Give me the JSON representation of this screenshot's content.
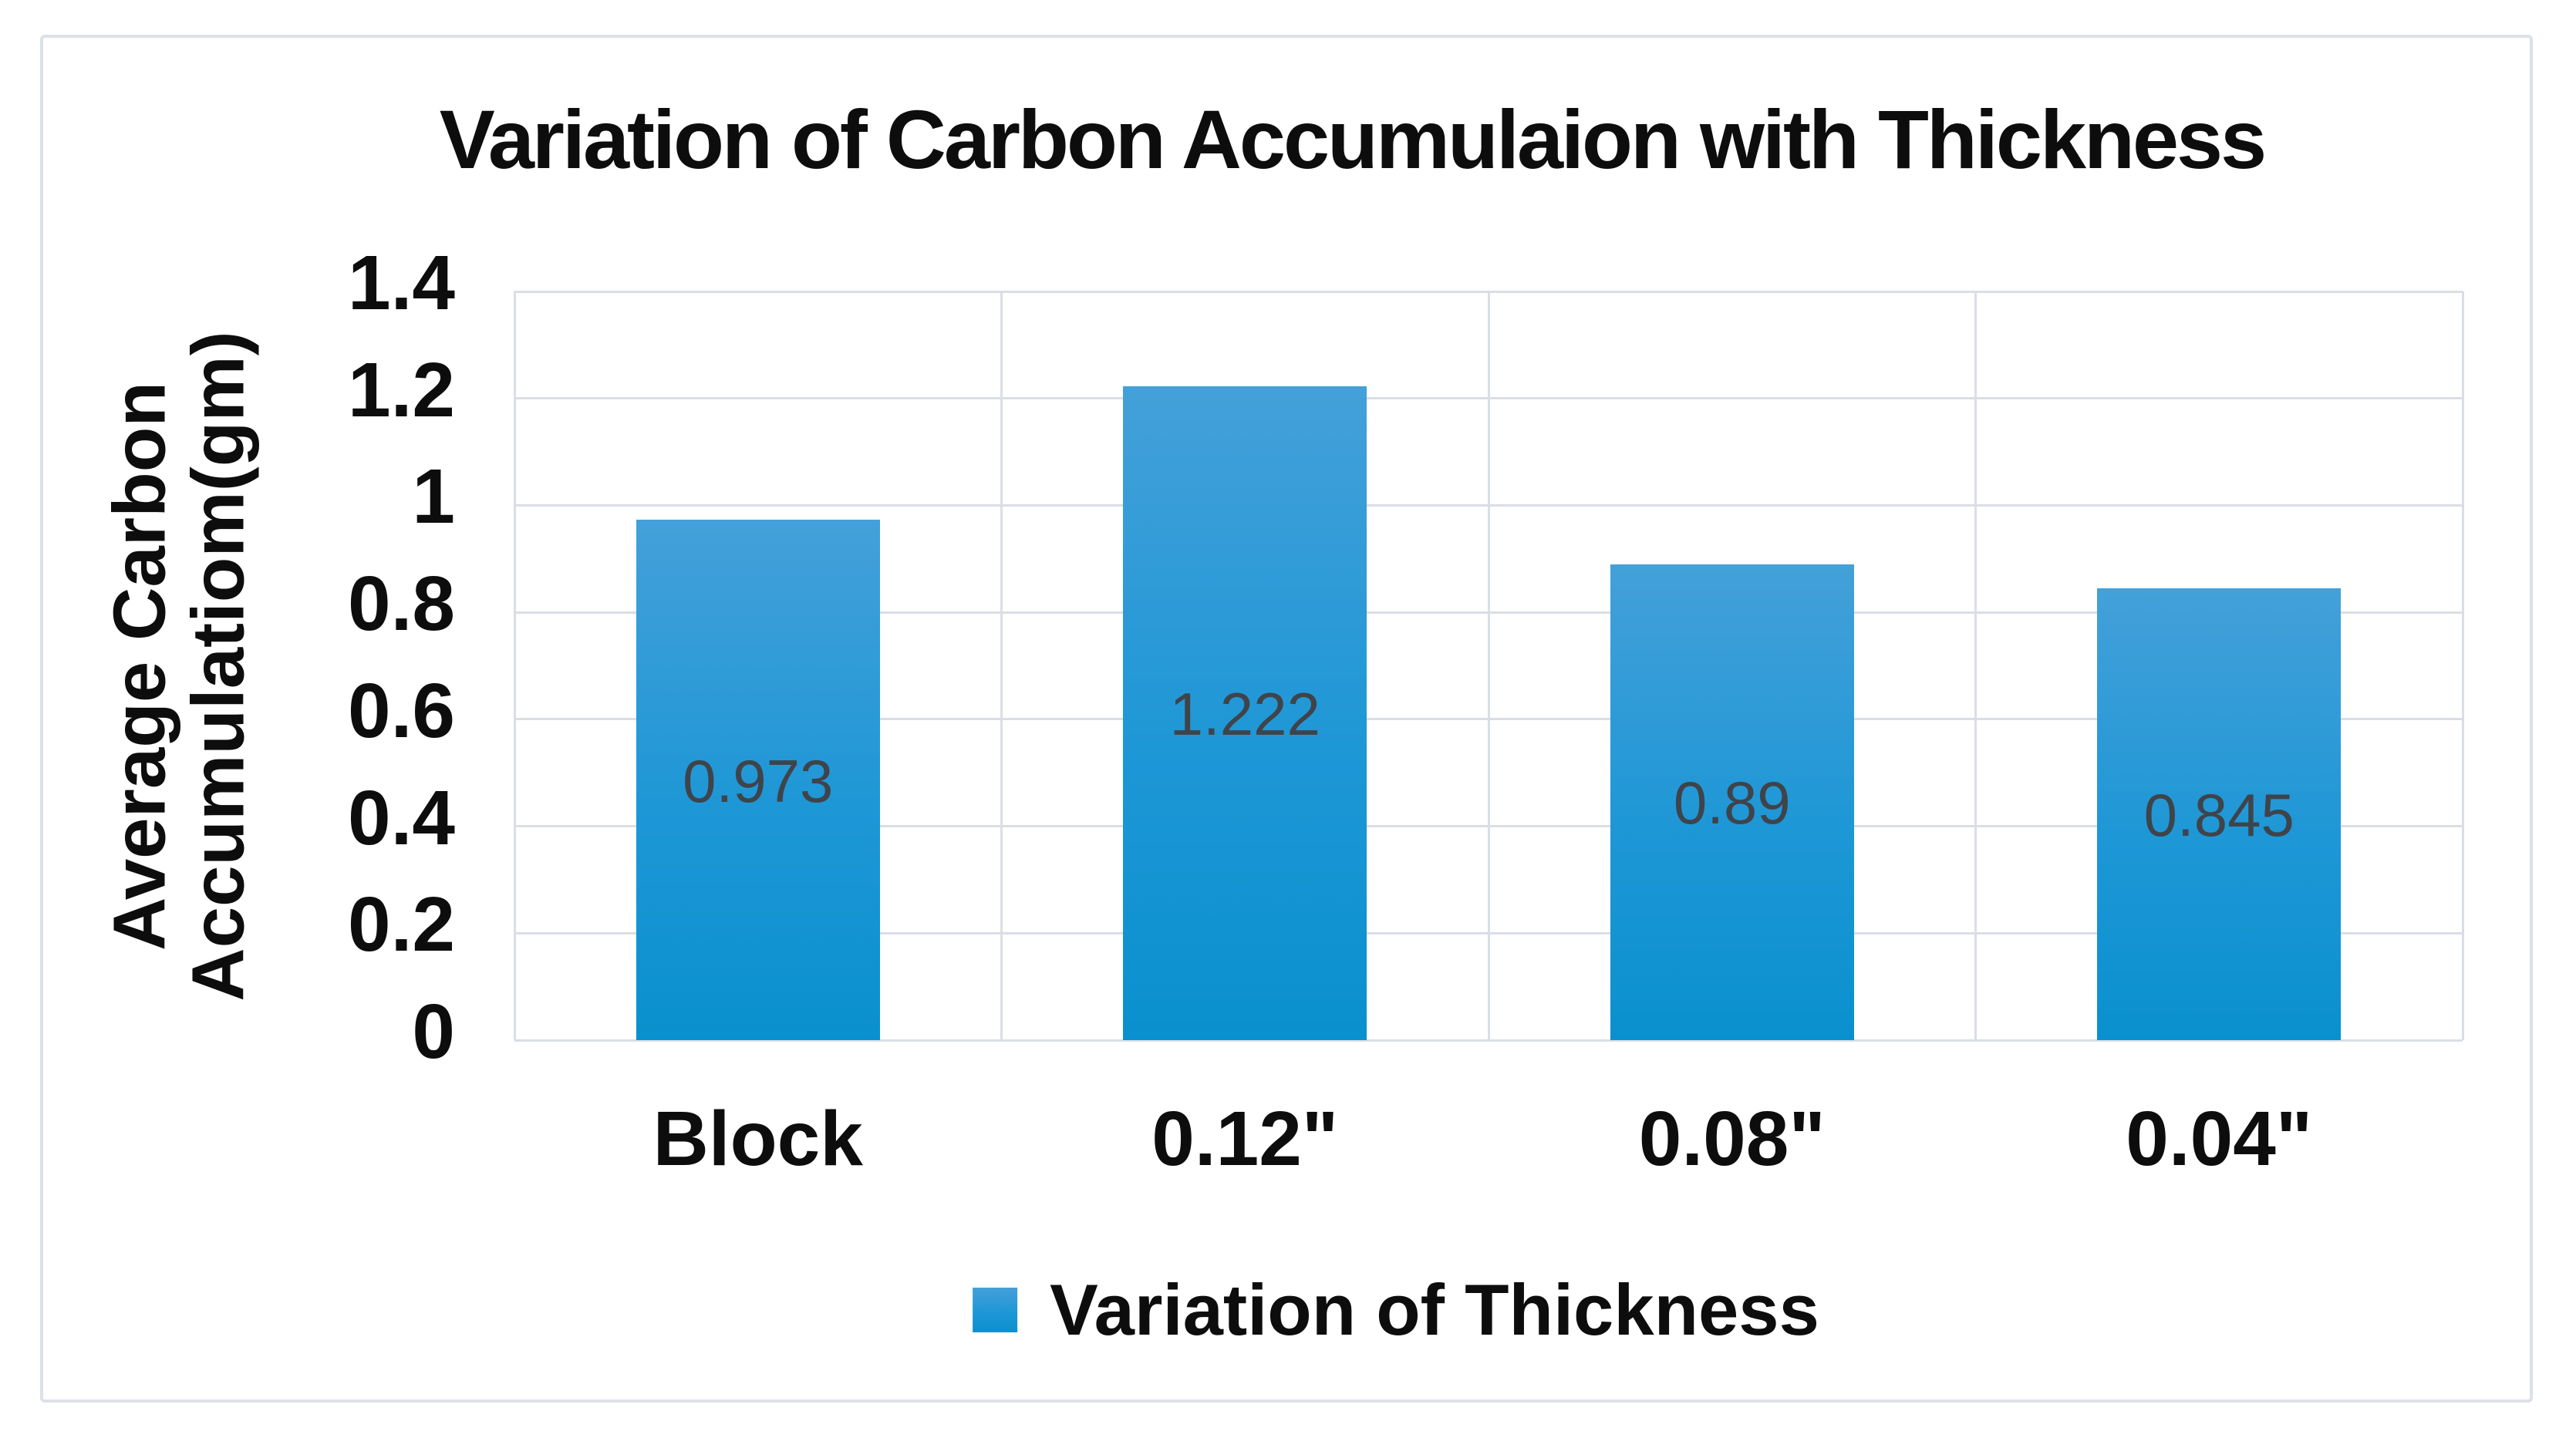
{
  "figure": {
    "title": "Variation of Carbon Accumulaion with Thickness",
    "y_axis": {
      "title_line1": "Average Carbon",
      "title_line2": "Accumulatiom(gm)",
      "ticks": [
        "1.4",
        "1.2",
        "1",
        "0.8",
        "0.6",
        "0.4",
        "0.2",
        "0"
      ]
    },
    "legend": {
      "label": "Variation of Thickness"
    }
  },
  "chart_data": {
    "type": "bar",
    "title": "Variation of Carbon Accumulaion with Thickness",
    "categories": [
      "Block",
      "0.12\"",
      "0.08\"",
      "0.04\""
    ],
    "values": [
      0.973,
      1.222,
      0.89,
      0.845
    ],
    "data_labels": [
      "0.973",
      "1.222",
      "0.89",
      "0.845"
    ],
    "series": [
      {
        "name": "Variation of Thickness",
        "values": [
          0.973,
          1.222,
          0.89,
          0.845
        ]
      }
    ],
    "xlabel": "",
    "ylabel": "Average Carbon Accumulatiom(gm)",
    "ylim": [
      0,
      1.4
    ],
    "ytick_step": 0.2,
    "grid": true,
    "legend_position": "bottom",
    "colors": {
      "bar_gradient_top": "#44a0d9",
      "bar_gradient_mid": "#1e97d6",
      "bar_gradient_bottom": "#0a90ce",
      "gridline": "#d9dee6",
      "data_label_text": "#3f444b",
      "axis_text": "#0d0d0d",
      "figure_border": "#dce1e8",
      "background": "#ffffff"
    }
  }
}
